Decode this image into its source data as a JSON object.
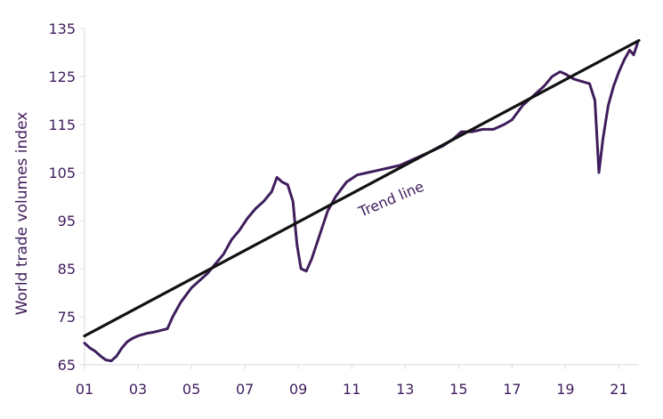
{
  "chart_data": {
    "type": "line",
    "title": "",
    "xlabel": "",
    "ylabel": "World trade volumes index",
    "xlim": [
      2001.0,
      2021.75
    ],
    "ylim": [
      65,
      135
    ],
    "x_ticks": [
      2001,
      2003,
      2005,
      2007,
      2009,
      2011,
      2013,
      2015,
      2017,
      2019,
      2021
    ],
    "x_tick_labels": [
      "01",
      "03",
      "05",
      "07",
      "09",
      "11",
      "13",
      "15",
      "17",
      "19",
      "21"
    ],
    "y_ticks": [
      65,
      75,
      85,
      95,
      105,
      115,
      125,
      135
    ],
    "grid": false,
    "legend": "none",
    "annotation": "Trend line",
    "series": [
      {
        "color": "#3f1d5c",
        "points": [
          [
            2001.0,
            69.5
          ],
          [
            2001.2,
            68.5
          ],
          [
            2001.4,
            67.8
          ],
          [
            2001.6,
            66.8
          ],
          [
            2001.8,
            66.0
          ],
          [
            2002.0,
            65.8
          ],
          [
            2002.2,
            66.8
          ],
          [
            2002.4,
            68.5
          ],
          [
            2002.6,
            69.8
          ],
          [
            2002.8,
            70.5
          ],
          [
            2003.0,
            71.0
          ],
          [
            2003.3,
            71.5
          ],
          [
            2003.6,
            71.8
          ],
          [
            2003.9,
            72.2
          ],
          [
            2004.1,
            72.5
          ],
          [
            2004.3,
            75.0
          ],
          [
            2004.6,
            78.0
          ],
          [
            2004.8,
            79.5
          ],
          [
            2005.0,
            81.0
          ],
          [
            2005.3,
            82.5
          ],
          [
            2005.6,
            84.0
          ],
          [
            2005.9,
            86.0
          ],
          [
            2006.2,
            88.0
          ],
          [
            2006.5,
            91.0
          ],
          [
            2006.8,
            93.0
          ],
          [
            2007.1,
            95.5
          ],
          [
            2007.4,
            97.5
          ],
          [
            2007.7,
            99.0
          ],
          [
            2008.0,
            101.0
          ],
          [
            2008.2,
            104.0
          ],
          [
            2008.4,
            103.0
          ],
          [
            2008.6,
            102.5
          ],
          [
            2008.8,
            99.0
          ],
          [
            2008.95,
            90.0
          ],
          [
            2009.1,
            85.0
          ],
          [
            2009.3,
            84.5
          ],
          [
            2009.5,
            87.0
          ],
          [
            2009.8,
            92.0
          ],
          [
            2010.1,
            97.0
          ],
          [
            2010.4,
            100.0
          ],
          [
            2010.8,
            103.0
          ],
          [
            2011.2,
            104.5
          ],
          [
            2011.6,
            105.0
          ],
          [
            2012.0,
            105.5
          ],
          [
            2012.4,
            106.0
          ],
          [
            2012.8,
            106.5
          ],
          [
            2013.2,
            107.5
          ],
          [
            2013.6,
            108.5
          ],
          [
            2014.0,
            109.5
          ],
          [
            2014.4,
            110.5
          ],
          [
            2014.8,
            112.0
          ],
          [
            2015.1,
            113.5
          ],
          [
            2015.5,
            113.5
          ],
          [
            2015.9,
            114.0
          ],
          [
            2016.3,
            114.0
          ],
          [
            2016.7,
            115.0
          ],
          [
            2017.0,
            116.0
          ],
          [
            2017.4,
            119.0
          ],
          [
            2017.8,
            121.0
          ],
          [
            2018.2,
            123.0
          ],
          [
            2018.5,
            125.0
          ],
          [
            2018.8,
            126.0
          ],
          [
            2019.0,
            125.5
          ],
          [
            2019.3,
            124.5
          ],
          [
            2019.6,
            124.0
          ],
          [
            2019.9,
            123.5
          ],
          [
            2020.1,
            120.0
          ],
          [
            2020.25,
            105.0
          ],
          [
            2020.4,
            112.0
          ],
          [
            2020.6,
            119.0
          ],
          [
            2020.8,
            123.0
          ],
          [
            2021.0,
            126.0
          ],
          [
            2021.2,
            128.5
          ],
          [
            2021.4,
            130.5
          ],
          [
            2021.55,
            129.5
          ],
          [
            2021.7,
            132.0
          ]
        ]
      },
      {
        "color": "#111111",
        "points": [
          [
            2001.0,
            71.0
          ],
          [
            2021.75,
            132.5
          ]
        ]
      }
    ]
  }
}
